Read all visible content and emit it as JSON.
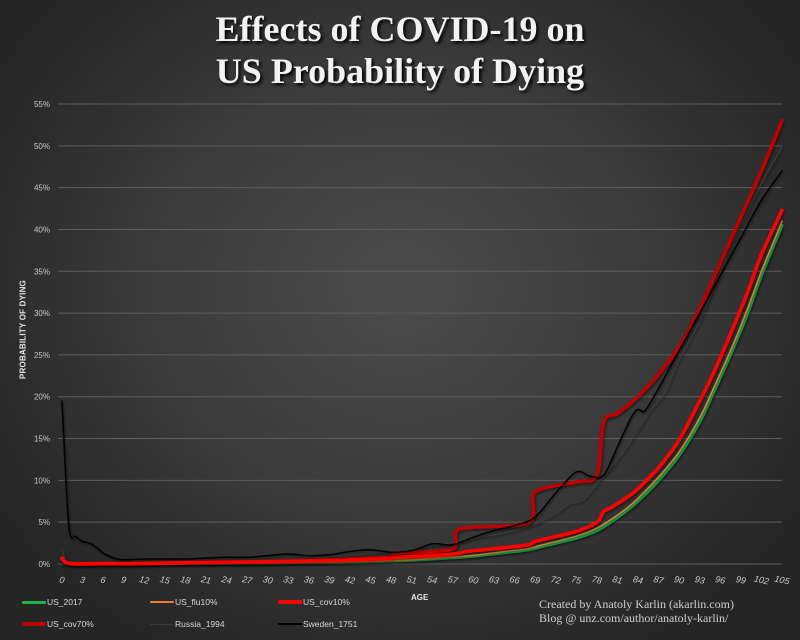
{
  "title_line1": "Effects of COVID-19 on",
  "title_line2": "US Probability of Dying",
  "credit_line1": "Created by Anatoly Karlin (akarlin.com)",
  "credit_line2": "Blog @ unz.com/author/anatoly-karlin/",
  "chart_data": {
    "type": "line",
    "title": "Effects of COVID-19 on US Probability of Dying",
    "xlabel": "AGE",
    "ylabel": "PROBABILITY OF DYING",
    "xlim": [
      0,
      105
    ],
    "ylim": [
      0,
      55
    ],
    "grid": true,
    "legend_position": "bottom",
    "y_ticks": [
      0,
      5,
      10,
      15,
      20,
      25,
      30,
      35,
      40,
      45,
      50,
      55
    ],
    "y_tick_labels": [
      "0%",
      "5%",
      "10%",
      "15%",
      "20%",
      "25%",
      "30%",
      "35%",
      "40%",
      "45%",
      "50%",
      "55%"
    ],
    "x_ticks": [
      0,
      3,
      6,
      9,
      12,
      15,
      18,
      21,
      24,
      27,
      30,
      33,
      36,
      39,
      42,
      45,
      48,
      51,
      54,
      57,
      60,
      63,
      66,
      69,
      72,
      75,
      78,
      81,
      84,
      87,
      90,
      93,
      96,
      99,
      102,
      105
    ],
    "x_tick_labels": [
      "0",
      "3",
      "6",
      "9",
      "12",
      "15",
      "18",
      "21",
      "24",
      "27",
      "30",
      "33",
      "36",
      "39",
      "42",
      "45",
      "48",
      "51",
      "54",
      "57",
      "60",
      "63",
      "66",
      "69",
      "72",
      "75",
      "78",
      "81",
      "84",
      "87",
      "90",
      "93",
      "96",
      "99",
      "102",
      "105"
    ],
    "series": [
      {
        "name": "US_2017",
        "color": "#1fb24a",
        "x": [
          0,
          1,
          5,
          10,
          20,
          30,
          40,
          45,
          50,
          55,
          60,
          65,
          68,
          70,
          75,
          78,
          80,
          83,
          85,
          87,
          90,
          93,
          95,
          98,
          100,
          102,
          105
        ],
        "values": [
          0.6,
          0.04,
          0.01,
          0.01,
          0.1,
          0.15,
          0.22,
          0.3,
          0.42,
          0.65,
          0.95,
          1.4,
          1.7,
          2.1,
          3.1,
          4.0,
          5.0,
          6.8,
          8.3,
          10.0,
          13.0,
          17.0,
          20.5,
          26.0,
          30.0,
          34.5,
          40.5
        ]
      },
      {
        "name": "US_flu10%",
        "color": "#ed7d31",
        "x": [
          0,
          1,
          5,
          10,
          20,
          30,
          40,
          45,
          50,
          55,
          60,
          65,
          68,
          70,
          75,
          78,
          80,
          83,
          85,
          87,
          90,
          93,
          95,
          98,
          100,
          102,
          105
        ],
        "values": [
          0.65,
          0.05,
          0.02,
          0.02,
          0.12,
          0.17,
          0.25,
          0.34,
          0.47,
          0.72,
          1.05,
          1.55,
          1.85,
          2.3,
          3.35,
          4.3,
          5.3,
          7.1,
          8.7,
          10.4,
          13.4,
          17.5,
          21.0,
          26.5,
          30.6,
          35.0,
          41.0
        ]
      },
      {
        "name": "US_cov10%",
        "color": "#ff0000",
        "x": [
          0,
          1,
          5,
          10,
          20,
          30,
          40,
          45,
          48,
          49,
          55,
          58,
          59,
          65,
          68,
          69,
          70,
          75,
          78,
          79,
          80,
          83,
          85,
          87,
          90,
          93,
          95,
          98,
          100,
          102,
          105
        ],
        "values": [
          0.7,
          0.06,
          0.03,
          0.04,
          0.17,
          0.25,
          0.4,
          0.55,
          0.65,
          0.8,
          1.05,
          1.3,
          1.5,
          2.0,
          2.3,
          2.7,
          2.9,
          3.9,
          5.0,
          6.3,
          6.7,
          8.3,
          9.8,
          11.5,
          14.8,
          19.5,
          22.8,
          28.5,
          32.5,
          37.0,
          42.3
        ]
      },
      {
        "name": "US_cov70%",
        "color": "#c00000",
        "x": [
          0,
          1,
          5,
          10,
          20,
          30,
          40,
          45,
          48,
          49,
          57,
          58,
          68,
          69,
          75,
          78,
          79,
          81,
          84,
          87,
          90,
          93,
          96,
          99,
          102,
          105
        ],
        "values": [
          0.6,
          0.05,
          0.03,
          0.05,
          0.2,
          0.3,
          0.5,
          0.7,
          0.8,
          1.3,
          1.8,
          4.2,
          4.9,
          8.6,
          9.8,
          10.6,
          17.0,
          18.0,
          20.0,
          22.7,
          26.0,
          30.5,
          36.0,
          41.5,
          47.0,
          53.0
        ]
      },
      {
        "name": "Russia_1994",
        "color": "#3a3a3a",
        "x": [
          0,
          1,
          5,
          10,
          15,
          20,
          25,
          30,
          35,
          40,
          45,
          48,
          51,
          54,
          57,
          60,
          63,
          66,
          69,
          72,
          74,
          76,
          78,
          80,
          82,
          84,
          86,
          88,
          90,
          93,
          96,
          99,
          102,
          105
        ],
        "values": [
          1.8,
          0.2,
          0.1,
          0.08,
          0.15,
          0.3,
          0.4,
          0.5,
          0.6,
          0.9,
          1.3,
          1.5,
          1.8,
          2.2,
          2.6,
          3.1,
          3.5,
          4.0,
          4.8,
          6.0,
          7.2,
          7.6,
          9.5,
          11.5,
          13.5,
          16.0,
          18.5,
          20.5,
          24.5,
          29.0,
          35.0,
          40.5,
          45.5,
          49.8
        ]
      },
      {
        "name": "Sweden_1751",
        "color": "#000000",
        "x": [
          0,
          1,
          2,
          3,
          4,
          5,
          6,
          7,
          8,
          9,
          12,
          15,
          18,
          21,
          24,
          27,
          30,
          33,
          36,
          39,
          42,
          45,
          48,
          51,
          54,
          57,
          60,
          63,
          66,
          69,
          72,
          75,
          77,
          79,
          81,
          83,
          84,
          85,
          87,
          90,
          93,
          96,
          99,
          102,
          105
        ],
        "values": [
          19.5,
          4.5,
          3.3,
          2.7,
          2.5,
          2.0,
          1.3,
          0.9,
          0.6,
          0.5,
          0.6,
          0.6,
          0.6,
          0.7,
          0.8,
          0.8,
          1.0,
          1.2,
          1.0,
          1.1,
          1.5,
          1.7,
          1.4,
          1.6,
          2.4,
          2.3,
          3.2,
          4.0,
          4.6,
          5.6,
          8.5,
          11.0,
          10.5,
          10.6,
          14.0,
          17.5,
          18.5,
          18.3,
          21.0,
          25.5,
          30.0,
          34.5,
          39.0,
          43.5,
          47.0
        ]
      }
    ]
  }
}
